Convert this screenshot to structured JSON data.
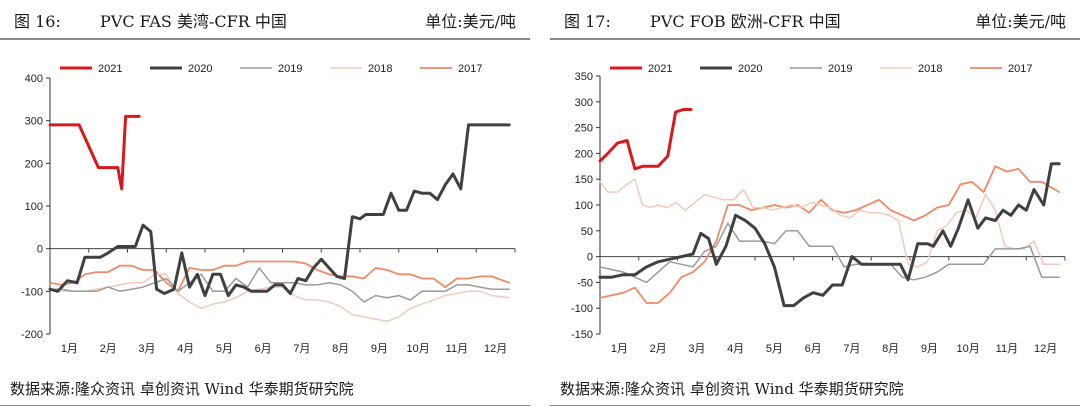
{
  "charts": [
    {
      "fig_label": "图 16:",
      "title": "PVC FAS 美湾-CFR 中国",
      "unit": "单位:美元/吨",
      "source": "数据来源:隆众资讯 卓创资讯 Wind 华泰期货研究院"
    },
    {
      "fig_label": "图 17:",
      "title": "PVC FOB 欧洲-CFR 中国",
      "unit": "单位:美元/吨",
      "source": "数据来源:隆众资讯 卓创资讯 Wind 华泰期货研究院"
    }
  ],
  "chart_data": [
    {
      "type": "line",
      "ylim": [
        -200,
        400
      ],
      "yticks": [
        -200,
        -100,
        0,
        100,
        200,
        300,
        400
      ],
      "xlim": [
        1,
        13
      ],
      "xtick_labels": [
        "1月",
        "2月",
        "3月",
        "4月",
        "5月",
        "6月",
        "7月",
        "8月",
        "9月",
        "10月",
        "11月",
        "12月"
      ],
      "legend_position": "top",
      "grid": false,
      "series": [
        {
          "name": "2021",
          "color": "#d7191c",
          "width": 3,
          "x": [
            1,
            1.25,
            1.5,
            1.75,
            2.0,
            2.25,
            2.5,
            2.75,
            2.85,
            2.95,
            3.15,
            3.3
          ],
          "y": [
            290,
            290,
            290,
            290,
            240,
            190,
            190,
            190,
            140,
            310,
            310,
            310
          ]
        },
        {
          "name": "2020",
          "color": "#404040",
          "width": 3,
          "x": [
            1,
            1.2,
            1.45,
            1.7,
            1.9,
            2.1,
            2.3,
            2.5,
            2.75,
            2.95,
            3.2,
            3.4,
            3.6,
            3.75,
            3.95,
            4.2,
            4.4,
            4.6,
            4.8,
            5.0,
            5.2,
            5.4,
            5.6,
            5.8,
            6.0,
            6.2,
            6.4,
            6.6,
            6.8,
            7.0,
            7.2,
            7.4,
            7.6,
            7.8,
            8.0,
            8.2,
            8.4,
            8.6,
            8.8,
            9.0,
            9.15,
            9.4,
            9.6,
            9.8,
            10.0,
            10.2,
            10.4,
            10.6,
            10.8,
            11.0,
            11.2,
            11.4,
            11.6,
            11.8,
            12.0,
            12.2,
            12.4,
            12.65,
            12.85
          ],
          "y": [
            -95,
            -100,
            -75,
            -80,
            -20,
            -20,
            -20,
            -10,
            5,
            5,
            5,
            55,
            40,
            -95,
            -105,
            -95,
            -10,
            -90,
            -60,
            -110,
            -60,
            -60,
            -110,
            -85,
            -90,
            -100,
            -100,
            -100,
            -85,
            -85,
            -105,
            -70,
            -75,
            -45,
            -25,
            -45,
            -65,
            -70,
            75,
            70,
            80,
            80,
            80,
            130,
            90,
            90,
            135,
            130,
            130,
            115,
            150,
            175,
            140,
            290,
            290,
            290,
            290,
            290,
            290
          ]
        },
        {
          "name": "2019",
          "color": "#9a9a9a",
          "width": 1.5,
          "x": [
            1,
            1.3,
            1.6,
            1.9,
            2.2,
            2.5,
            2.8,
            3.1,
            3.4,
            3.7,
            4.0,
            4.3,
            4.6,
            4.9,
            5.2,
            5.5,
            5.8,
            6.1,
            6.4,
            6.7,
            7.0,
            7.3,
            7.6,
            7.9,
            8.2,
            8.5,
            8.8,
            9.1,
            9.4,
            9.7,
            10.0,
            10.3,
            10.6,
            10.9,
            11.2,
            11.5,
            11.8,
            12.1,
            12.4,
            12.85
          ],
          "y": [
            -95,
            -95,
            -100,
            -100,
            -100,
            -90,
            -100,
            -95,
            -90,
            -80,
            -70,
            -100,
            -80,
            -60,
            -100,
            -100,
            -70,
            -90,
            -45,
            -80,
            -80,
            -80,
            -85,
            -85,
            -80,
            -85,
            -100,
            -125,
            -110,
            -115,
            -110,
            -120,
            -100,
            -100,
            -100,
            -85,
            -85,
            -90,
            -95,
            -95
          ]
        },
        {
          "name": "2018",
          "color": "#f4c9b8",
          "width": 1.5,
          "x": [
            1,
            1.3,
            1.6,
            1.9,
            2.2,
            2.5,
            2.8,
            3.1,
            3.4,
            3.7,
            4.0,
            4.3,
            4.6,
            4.9,
            5.2,
            5.5,
            5.8,
            6.1,
            6.4,
            6.7,
            7.0,
            7.3,
            7.6,
            7.9,
            8.2,
            8.5,
            8.8,
            9.1,
            9.4,
            9.7,
            10.0,
            10.3,
            10.6,
            10.9,
            11.2,
            11.5,
            11.8,
            12.1,
            12.4,
            12.85
          ],
          "y": [
            -95,
            -100,
            -100,
            -100,
            -95,
            -90,
            -85,
            -80,
            -80,
            -60,
            -60,
            -105,
            -125,
            -140,
            -130,
            -125,
            -115,
            -100,
            -95,
            -90,
            -90,
            -110,
            -120,
            -120,
            -125,
            -135,
            -155,
            -160,
            -165,
            -170,
            -160,
            -140,
            -130,
            -120,
            -110,
            -105,
            -100,
            -100,
            -110,
            -115
          ]
        },
        {
          "name": "2017",
          "color": "#f08a65",
          "width": 1.8,
          "x": [
            1,
            1.3,
            1.6,
            1.9,
            2.2,
            2.5,
            2.8,
            3.1,
            3.4,
            3.7,
            4.0,
            4.3,
            4.6,
            4.9,
            5.2,
            5.5,
            5.8,
            6.1,
            6.4,
            6.7,
            7.0,
            7.3,
            7.6,
            7.9,
            8.2,
            8.5,
            8.8,
            9.1,
            9.4,
            9.7,
            10.0,
            10.3,
            10.6,
            10.9,
            11.2,
            11.5,
            11.8,
            12.1,
            12.4,
            12.85
          ],
          "y": [
            -80,
            -85,
            -80,
            -60,
            -55,
            -55,
            -40,
            -40,
            -50,
            -50,
            -80,
            -100,
            -45,
            -50,
            -50,
            -40,
            -40,
            -30,
            -30,
            -30,
            -30,
            -30,
            -35,
            -50,
            -60,
            -65,
            -65,
            -70,
            -45,
            -50,
            -60,
            -60,
            -70,
            -70,
            -90,
            -70,
            -70,
            -65,
            -65,
            -80
          ]
        }
      ]
    },
    {
      "type": "line",
      "ylim": [
        -150,
        350
      ],
      "yticks": [
        -150,
        -100,
        -50,
        0,
        50,
        100,
        150,
        200,
        250,
        300,
        350
      ],
      "xlim": [
        1,
        13
      ],
      "xtick_labels": [
        "1月",
        "2月",
        "3月",
        "4月",
        "5月",
        "6月",
        "7月",
        "8月",
        "9月",
        "10月",
        "11月",
        "12月"
      ],
      "legend_position": "top",
      "grid": false,
      "series": [
        {
          "name": "2021",
          "color": "#d7191c",
          "width": 3,
          "x": [
            1,
            1.2,
            1.45,
            1.7,
            1.9,
            2.1,
            2.3,
            2.5,
            2.75,
            2.95,
            3.15,
            3.35
          ],
          "y": [
            185,
            200,
            220,
            225,
            170,
            175,
            175,
            175,
            195,
            280,
            285,
            285
          ]
        },
        {
          "name": "2020",
          "color": "#404040",
          "width": 3,
          "x": [
            1,
            1.3,
            1.6,
            1.9,
            2.2,
            2.5,
            2.8,
            3.1,
            3.4,
            3.6,
            3.8,
            4.0,
            4.25,
            4.5,
            4.75,
            5.0,
            5.25,
            5.5,
            5.75,
            6.0,
            6.25,
            6.5,
            6.75,
            7.0,
            7.25,
            7.5,
            7.75,
            8.0,
            8.25,
            8.5,
            8.75,
            8.95,
            9.2,
            9.45,
            9.6,
            9.85,
            10.05,
            10.25,
            10.5,
            10.75,
            10.95,
            11.2,
            11.4,
            11.6,
            11.8,
            12.0,
            12.2,
            12.45,
            12.65,
            12.85
          ],
          "y": [
            -40,
            -40,
            -35,
            -35,
            -20,
            -10,
            -5,
            0,
            5,
            45,
            35,
            -15,
            20,
            80,
            70,
            55,
            25,
            -20,
            -95,
            -95,
            -80,
            -70,
            -75,
            -55,
            -55,
            0,
            -15,
            -15,
            -15,
            -15,
            -15,
            -45,
            25,
            25,
            20,
            50,
            20,
            55,
            110,
            55,
            75,
            70,
            90,
            80,
            100,
            90,
            130,
            100,
            180,
            180
          ]
        },
        {
          "name": "2019",
          "color": "#9a9a9a",
          "width": 1.5,
          "x": [
            1,
            1.3,
            1.6,
            1.9,
            2.2,
            2.5,
            2.8,
            3.1,
            3.4,
            3.7,
            4.0,
            4.3,
            4.6,
            4.9,
            5.2,
            5.5,
            5.8,
            6.1,
            6.4,
            6.7,
            7.0,
            7.3,
            7.6,
            7.9,
            8.2,
            8.5,
            8.8,
            9.1,
            9.4,
            9.7,
            10.0,
            10.3,
            10.6,
            10.9,
            11.2,
            11.5,
            11.8,
            12.1,
            12.4,
            12.85
          ],
          "y": [
            -20,
            -25,
            -30,
            -40,
            -50,
            -30,
            -10,
            -15,
            -20,
            10,
            20,
            65,
            30,
            30,
            30,
            25,
            50,
            50,
            20,
            20,
            20,
            -20,
            -15,
            -15,
            -15,
            -15,
            -40,
            -45,
            -40,
            -30,
            -15,
            -15,
            -15,
            -15,
            15,
            15,
            15,
            20,
            -40,
            -40
          ]
        },
        {
          "name": "2018",
          "color": "#f4c9b8",
          "width": 1.5,
          "x": [
            1,
            1.2,
            1.45,
            1.7,
            1.9,
            2.1,
            2.3,
            2.5,
            2.75,
            2.95,
            3.2,
            3.45,
            3.7,
            3.95,
            4.2,
            4.45,
            4.7,
            4.95,
            5.2,
            5.45,
            5.7,
            5.95,
            6.2,
            6.45,
            6.7,
            6.95,
            7.2,
            7.45,
            7.7,
            7.95,
            8.2,
            8.45,
            8.7,
            8.95,
            9.2,
            9.45,
            9.7,
            9.95,
            10.2,
            10.45,
            10.7,
            10.95,
            11.2,
            11.45,
            11.7,
            11.95,
            12.2,
            12.45,
            12.85
          ],
          "y": [
            145,
            125,
            125,
            140,
            150,
            100,
            95,
            100,
            95,
            105,
            90,
            105,
            120,
            115,
            110,
            110,
            130,
            95,
            95,
            90,
            95,
            100,
            95,
            105,
            100,
            95,
            80,
            75,
            90,
            85,
            85,
            80,
            70,
            -15,
            -20,
            -10,
            50,
            60,
            85,
            90,
            75,
            120,
            90,
            20,
            15,
            15,
            30,
            -15,
            -15
          ]
        },
        {
          "name": "2017",
          "color": "#f08a65",
          "width": 1.8,
          "x": [
            1,
            1.3,
            1.6,
            1.9,
            2.2,
            2.5,
            2.8,
            3.1,
            3.4,
            3.7,
            4.0,
            4.3,
            4.6,
            4.9,
            5.2,
            5.5,
            5.8,
            6.1,
            6.4,
            6.7,
            7.0,
            7.3,
            7.6,
            7.9,
            8.2,
            8.5,
            8.8,
            9.1,
            9.4,
            9.7,
            10.0,
            10.3,
            10.6,
            10.9,
            11.2,
            11.5,
            11.8,
            12.1,
            12.4,
            12.85
          ],
          "y": [
            -80,
            -75,
            -70,
            -60,
            -90,
            -90,
            -70,
            -40,
            -30,
            -10,
            30,
            100,
            100,
            90,
            95,
            100,
            95,
            100,
            85,
            110,
            90,
            85,
            90,
            100,
            110,
            90,
            80,
            70,
            80,
            95,
            100,
            140,
            145,
            125,
            175,
            165,
            170,
            145,
            145,
            125
          ]
        }
      ]
    }
  ]
}
